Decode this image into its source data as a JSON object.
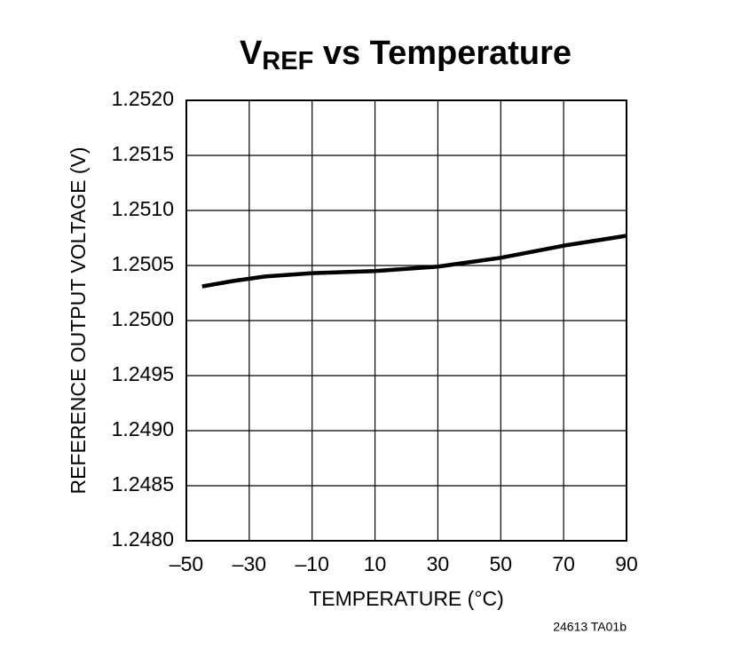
{
  "chart_data": {
    "type": "line",
    "title_parts": [
      "V",
      "REF",
      " vs Temperature"
    ],
    "x_label": "TEMPERATURE (°C)",
    "y_label": "REFERENCE OUTPUT VOLTAGE (V)",
    "footnote": "24613 TA01b",
    "x": [
      -45,
      -35,
      -25,
      -10,
      10,
      30,
      50,
      70,
      90
    ],
    "values": [
      1.25031,
      1.25036,
      1.2504,
      1.25043,
      1.25045,
      1.25049,
      1.25057,
      1.25068,
      1.25077
    ],
    "color": "#000000",
    "xlim": [
      -50,
      90
    ],
    "xticks": [
      {
        "value": -50,
        "label": "–50"
      },
      {
        "value": -30,
        "label": "–30"
      },
      {
        "value": -10,
        "label": "–10"
      },
      10,
      30,
      50,
      70,
      90
    ],
    "ylim": [
      1.248,
      1.252
    ],
    "yticks": [
      {
        "value": 1.248,
        "label": "1.2480"
      },
      1.2485,
      {
        "value": 1.249,
        "label": "1.2490"
      },
      1.2495,
      {
        "value": 1.25,
        "label": "1.2500"
      },
      1.2505,
      {
        "value": 1.251,
        "label": "1.2510"
      },
      1.2515,
      {
        "value": 1.252,
        "label": "1.2520"
      }
    ],
    "grid": true
  }
}
